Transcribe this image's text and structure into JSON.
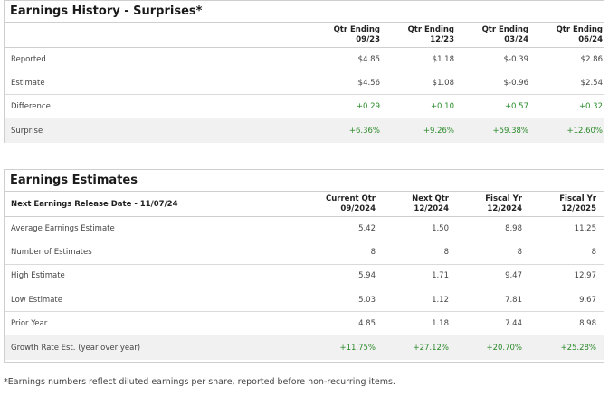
{
  "history": {
    "title": "Earnings History - Surprises*",
    "columns": [
      {
        "line1": "Qtr Ending",
        "line2": "09/23"
      },
      {
        "line1": "Qtr Ending",
        "line2": "12/23"
      },
      {
        "line1": "Qtr Ending",
        "line2": "03/24"
      },
      {
        "line1": "Qtr Ending",
        "line2": "06/24"
      }
    ],
    "rows": [
      {
        "label": "Reported",
        "values": [
          "$4.85",
          "$1.18",
          "$-0.39",
          "$2.86"
        ]
      },
      {
        "label": "Estimate",
        "values": [
          "$4.56",
          "$1.08",
          "$-0.96",
          "$2.54"
        ]
      },
      {
        "label": "Difference",
        "values": [
          "+0.29",
          "+0.10",
          "+0.57",
          "+0.32"
        ]
      },
      {
        "label": "Surprise",
        "values": [
          "+6.36%",
          "+9.26%",
          "+59.38%",
          "+12.60%"
        ]
      }
    ]
  },
  "estimates": {
    "title": "Earnings Estimates",
    "header_label": "Next Earnings Release Date - 11/07/24",
    "columns": [
      {
        "line1": "Current Qtr",
        "line2": "09/2024"
      },
      {
        "line1": "Next Qtr",
        "line2": "12/2024"
      },
      {
        "line1": "Fiscal Yr",
        "line2": "12/2024"
      },
      {
        "line1": "Fiscal Yr",
        "line2": "12/2025"
      }
    ],
    "rows": [
      {
        "label": "Average Earnings Estimate",
        "values": [
          "5.42",
          "1.50",
          "8.98",
          "11.25"
        ]
      },
      {
        "label": "Number of Estimates",
        "values": [
          "8",
          "8",
          "8",
          "8"
        ]
      },
      {
        "label": "High Estimate",
        "values": [
          "5.94",
          "1.71",
          "9.47",
          "12.97"
        ]
      },
      {
        "label": "Low Estimate",
        "values": [
          "5.03",
          "1.12",
          "7.81",
          "9.67"
        ]
      },
      {
        "label": "Prior Year",
        "values": [
          "4.85",
          "1.18",
          "7.44",
          "8.98"
        ]
      },
      {
        "label": "Growth Rate Est. (year over year)",
        "values": [
          "+11.75%",
          "+27.12%",
          "+20.70%",
          "+25.28%"
        ]
      }
    ]
  },
  "footnote": "*Earnings numbers reflect diluted earnings per share, reported before non-recurring items.",
  "colors": {
    "positive": "#2a8a2a",
    "border": "#cfcfcf",
    "shaded_row": "#f1f1f1"
  }
}
